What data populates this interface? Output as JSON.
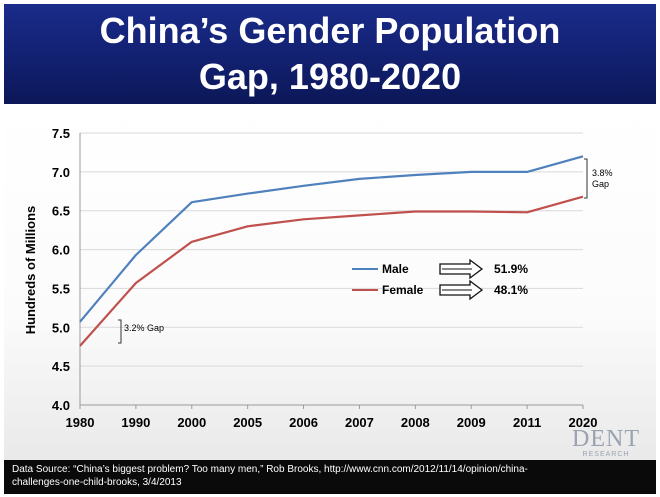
{
  "title": {
    "line1": "China’s Gender Population",
    "line2": "Gap, 1980-2020"
  },
  "chart_data": {
    "type": "line",
    "ylabel": "Hundreds of Millions",
    "xlabel": "",
    "categories": [
      "1980",
      "1990",
      "2000",
      "2005",
      "2006",
      "2007",
      "2008",
      "2009",
      "2011",
      "2020"
    ],
    "ylim": [
      4.0,
      7.5
    ],
    "yticks": [
      "4.0",
      "4.5",
      "5.0",
      "5.5",
      "6.0",
      "6.5",
      "7.0",
      "7.5"
    ],
    "series": [
      {
        "name": "Male",
        "color": "#4f81bd",
        "share": "51.9%",
        "values": [
          5.07,
          5.93,
          6.61,
          6.72,
          6.82,
          6.91,
          6.96,
          7.0,
          7.0,
          7.2
        ]
      },
      {
        "name": "Female",
        "color": "#c0504d",
        "share": "48.1%",
        "values": [
          4.76,
          5.57,
          6.1,
          6.3,
          6.39,
          6.44,
          6.49,
          6.49,
          6.48,
          6.68
        ]
      }
    ],
    "annotations": {
      "start_gap": "3.2% Gap",
      "end_gap_pct": "3.8%",
      "end_gap_word": "Gap"
    }
  },
  "footer": {
    "line1": "Data Source: “China’s biggest problem? Too many men,” Rob Brooks, http://www.cnn.com/2012/11/14/opinion/china-",
    "line2": "challenges-one-child-brooks, 3/4/2013"
  },
  "logo": {
    "word": "DENT",
    "sub": "RESEARCH"
  },
  "colors": {
    "title_band": "#122070",
    "male": "#4f81bd",
    "female": "#c0504d"
  }
}
